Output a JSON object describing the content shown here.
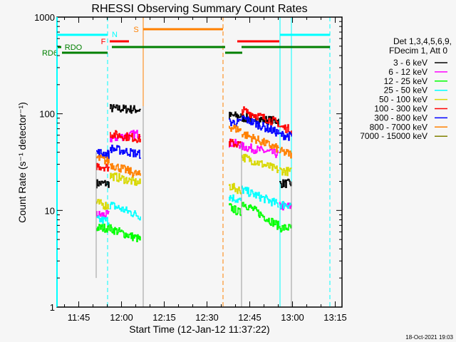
{
  "chart_data": {
    "type": "line",
    "title": "RHESSI Observing Summary Count Rates",
    "xlabel": "Start Time (12-Jan-12 11:37:22)",
    "ylabel": "Count Rate (s⁻¹ detector⁻¹)",
    "x_units": "minutes after 11:37:22",
    "xlim": [
      0,
      100
    ],
    "ylim": [
      1,
      1000
    ],
    "yscale": "log",
    "x_ticks": [
      {
        "t": 7.633,
        "label": "11:45"
      },
      {
        "t": 22.633,
        "label": "12:00"
      },
      {
        "t": 37.633,
        "label": "12:15"
      },
      {
        "t": 52.633,
        "label": "12:30"
      },
      {
        "t": 67.633,
        "label": "12:45"
      },
      {
        "t": 82.633,
        "label": "13:00"
      },
      {
        "t": 97.633,
        "label": "13:15"
      }
    ],
    "y_ticks": [
      {
        "v": 1,
        "label": "1"
      },
      {
        "v": 10,
        "label": "10"
      },
      {
        "v": 100,
        "label": "100"
      },
      {
        "v": 1000,
        "label": "1000"
      }
    ],
    "legend_header": [
      "Det 1,3,4,5,6,9,",
      "FDecim 1, Att 0"
    ],
    "legend_placement": "right-outside",
    "series": [
      {
        "name": "3 - 6 keV",
        "color": "#000000",
        "segments": [
          [
            13.75,
            19,
            18.25,
            19
          ],
          [
            18.5,
            114,
            29.25,
            110
          ],
          [
            60.25,
            95,
            64.5,
            95
          ],
          [
            64.75,
            91,
            77.75,
            84
          ],
          [
            78,
            19,
            82.25,
            19
          ]
        ]
      },
      {
        "name": "6 - 12 keV",
        "color": "#ff00ff",
        "segments": [
          [
            13.75,
            9,
            18.25,
            9
          ],
          [
            18.5,
            55,
            29.25,
            63
          ],
          [
            60.25,
            50,
            64.5,
            48
          ],
          [
            64.75,
            46,
            77.75,
            38
          ],
          [
            78,
            11,
            82.25,
            11
          ]
        ]
      },
      {
        "name": "12 - 25 keV",
        "color": "#00ff00",
        "segments": [
          [
            13.75,
            6.6,
            18.25,
            6.6
          ],
          [
            18.5,
            6.5,
            29.25,
            5
          ],
          [
            60.25,
            11,
            64.5,
            9.3
          ],
          [
            64.75,
            12.2,
            77.75,
            6.9
          ],
          [
            78,
            6.6,
            82.25,
            6.6
          ]
        ]
      },
      {
        "name": "25 - 50 keV",
        "color": "#00ffff",
        "segments": [
          [
            13.75,
            8,
            18.25,
            7.8
          ],
          [
            18.5,
            11.5,
            29.25,
            8.7
          ],
          [
            60.25,
            14,
            64.5,
            12.5
          ],
          [
            64.75,
            16.5,
            77.75,
            11.5
          ],
          [
            78,
            11.5,
            82.25,
            11.5
          ]
        ]
      },
      {
        "name": "50 - 100 keV",
        "color": "#d8d800",
        "segments": [
          [
            13.75,
            12,
            18.25,
            11
          ],
          [
            18.5,
            23,
            29.25,
            19
          ],
          [
            60.25,
            18,
            64.5,
            16
          ],
          [
            64.75,
            36,
            77.75,
            26
          ],
          [
            78,
            26,
            82.25,
            25
          ]
        ]
      },
      {
        "name": "100 - 300 keV",
        "color": "#ff0000",
        "segments": [
          [
            13.75,
            29,
            18.25,
            28
          ],
          [
            18.5,
            62,
            29.25,
            55
          ],
          [
            60.25,
            50,
            64.5,
            48
          ],
          [
            64.75,
            109,
            77.75,
            80
          ],
          [
            78,
            74,
            82.25,
            68
          ]
        ]
      },
      {
        "name": "300 - 800 keV",
        "color": "#0000ff",
        "segments": [
          [
            13.75,
            40,
            18.25,
            38
          ],
          [
            18.5,
            44,
            29.25,
            38
          ],
          [
            60.25,
            82,
            64.5,
            80
          ],
          [
            64.75,
            91,
            77.75,
            63
          ],
          [
            78,
            61,
            82.25,
            58
          ]
        ]
      },
      {
        "name": "800 - 7000 keV",
        "color": "#ff8000",
        "segments": [
          [
            13.75,
            35,
            18.25,
            32
          ],
          [
            18.5,
            30,
            29.25,
            23
          ],
          [
            60.25,
            74,
            64.5,
            67
          ],
          [
            64.75,
            63,
            77.75,
            43
          ],
          [
            78,
            41,
            82.25,
            38
          ]
        ]
      },
      {
        "name": "7000 - 15000 keV",
        "color": "#808000",
        "segments": []
      }
    ],
    "flags": [
      {
        "label": "N",
        "color": "#00ffff",
        "level": 655,
        "intervals": [
          [
            0,
            17.75
          ],
          [
            78.25,
            95.75
          ]
        ]
      },
      {
        "label": "S",
        "color": "#ff8000",
        "level": 750,
        "intervals": [
          [
            30.25,
            58.25
          ]
        ]
      },
      {
        "label": "F",
        "color": "#ff0000",
        "level": 562,
        "intervals": [
          [
            18.5,
            25.25
          ],
          [
            63.25,
            78
          ]
        ]
      },
      {
        "label": "RDO",
        "color": "#008000",
        "level": 490,
        "intervals": [
          [
            0,
            1.5
          ],
          [
            19.25,
            59
          ],
          [
            64.75,
            95.75
          ]
        ]
      },
      {
        "label": "RD6",
        "color": "#008000",
        "level": 428,
        "intervals": [
          [
            1.75,
            17.75
          ],
          [
            59,
            65
          ]
        ]
      }
    ],
    "vertical_markers": [
      {
        "t": 0,
        "color": "#00ffff",
        "style": "solid"
      },
      {
        "t": 17.75,
        "color": "#00ffff",
        "style": "dashed"
      },
      {
        "t": 30.25,
        "color": "#ff8000",
        "style": "solid"
      },
      {
        "t": 58.25,
        "color": "#ff8000",
        "style": "dashed"
      },
      {
        "t": 78.25,
        "color": "#00ffff",
        "style": "solid"
      },
      {
        "t": 82.25,
        "color": "#00ffff",
        "style": "solid"
      },
      {
        "t": 95.75,
        "color": "#00ffff",
        "style": "dashed"
      }
    ]
  },
  "footer": {
    "timestamp": "18-Oct-2021 19:03"
  }
}
